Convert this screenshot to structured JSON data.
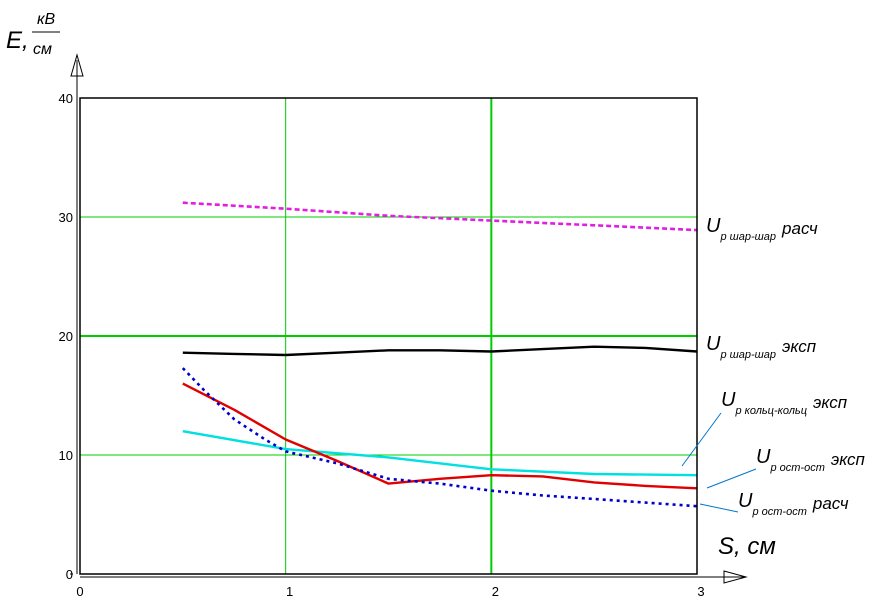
{
  "chart_data": {
    "type": "line",
    "xlabel": "S, см",
    "ylabel": {
      "symbol": "E,",
      "unit_num": "кВ",
      "unit_den": "см"
    },
    "xlim": [
      0,
      3
    ],
    "ylim": [
      0,
      40
    ],
    "x_ticks": [
      "0",
      "1",
      "2",
      "3"
    ],
    "y_ticks": [
      "0",
      "10",
      "20",
      "30",
      "40"
    ],
    "grid": true,
    "colors": {
      "grid": "#00cc00",
      "frame": "#000000",
      "callout": "#0077cc"
    },
    "series": [
      {
        "name": "Uр шар-шар расч",
        "main": "U",
        "sub": "р шар-шар",
        "tag": "расч",
        "color": "#e020e0",
        "style": "dashed",
        "x": [
          0.5,
          1.0,
          1.5,
          2.0,
          2.5,
          3.0
        ],
        "y": [
          31.2,
          30.7,
          30.1,
          29.7,
          29.3,
          28.9
        ]
      },
      {
        "name": "Uр шар-шар эксп",
        "main": "U",
        "sub": "р шар-шар",
        "tag": "эксп",
        "color": "#000000",
        "style": "solid",
        "x": [
          0.5,
          0.75,
          1.0,
          1.25,
          1.5,
          1.75,
          2.0,
          2.25,
          2.5,
          2.75,
          3.0
        ],
        "y": [
          18.6,
          18.5,
          18.4,
          18.6,
          18.8,
          18.8,
          18.7,
          18.9,
          19.1,
          19.0,
          18.7
        ]
      },
      {
        "name": "Uр кольц-кольц эксп",
        "main": "U",
        "sub": "р кольц-кольц",
        "tag": "эксп",
        "color": "#00e0e0",
        "style": "solid",
        "x": [
          0.5,
          1.0,
          1.5,
          2.0,
          2.5,
          3.0
        ],
        "y": [
          12.0,
          10.5,
          9.8,
          8.8,
          8.4,
          8.3
        ]
      },
      {
        "name": "Uр ост-ост эксп",
        "main": "U",
        "sub": "р ост-ост",
        "tag": "эксп",
        "color": "#e00000",
        "style": "solid",
        "x": [
          0.5,
          0.75,
          1.0,
          1.25,
          1.5,
          1.75,
          2.0,
          2.25,
          2.5,
          2.75,
          3.0
        ],
        "y": [
          16.0,
          13.8,
          11.3,
          9.5,
          7.6,
          8.0,
          8.3,
          8.2,
          7.7,
          7.4,
          7.2
        ]
      },
      {
        "name": "Uр ост-ост расч",
        "main": "U",
        "sub": "р ост-ост",
        "tag": "расч",
        "color": "#0000cc",
        "style": "dotted",
        "x": [
          0.5,
          0.6,
          0.75,
          0.9,
          1.0,
          1.25,
          1.5,
          1.75,
          2.0,
          2.25,
          2.5,
          2.75,
          3.0
        ],
        "y": [
          17.3,
          15.5,
          13.0,
          11.3,
          10.3,
          9.3,
          8.0,
          7.6,
          7.0,
          6.6,
          6.3,
          6.0,
          5.7
        ]
      }
    ]
  }
}
